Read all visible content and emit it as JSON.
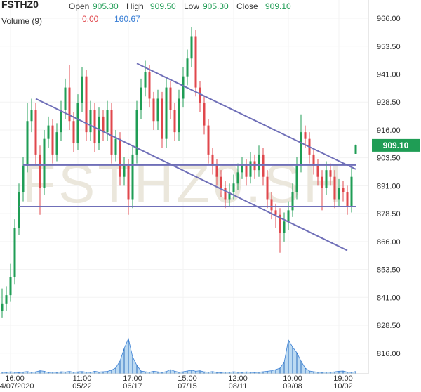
{
  "chart_data": {
    "type": "candlestick",
    "symbol": "FSTHZ0",
    "watermark": "FSTHZ0.SH",
    "header": [
      {
        "name": "Open",
        "label": "905.30"
      },
      {
        "name": "High",
        "label": "909.50"
      },
      {
        "name": "Low",
        "label": "905.30"
      },
      {
        "name": "Close",
        "label": "909.10"
      }
    ],
    "volume_header": {
      "name": "Volume (9)",
      "values": [
        "0.00",
        "160.67"
      ]
    },
    "last_price": {
      "value": 909.1,
      "label": "909.10"
    },
    "up_color": "#1f9d55",
    "down_color": "#e0474c",
    "line_color": "#6f6fb8",
    "volume_color": "#8fc1ea",
    "ylim": [
      806.8,
      974.2
    ],
    "yticks": [
      {
        "value": 966,
        "label": "966.00"
      },
      {
        "value": 953.5,
        "label": "953.50"
      },
      {
        "value": 941,
        "label": "941.00"
      },
      {
        "value": 928.5,
        "label": "928.50"
      },
      {
        "value": 916,
        "label": "916.00"
      },
      {
        "value": 903.5,
        "label": "903.50"
      },
      {
        "value": 891,
        "label": "891.00"
      },
      {
        "value": 878.5,
        "label": "878.50"
      },
      {
        "value": 866,
        "label": "866.00"
      },
      {
        "value": 853.5,
        "label": "853.50"
      },
      {
        "value": 841,
        "label": "841.00"
      },
      {
        "value": 828.5,
        "label": "828.50"
      },
      {
        "value": 816,
        "label": "816.00"
      }
    ],
    "volume_lim": [
      0,
      3000
    ],
    "categories": [
      null,
      null,
      "04/07/2020",
      null,
      null,
      null,
      null,
      null,
      null,
      null,
      null,
      null,
      null,
      null,
      null,
      null,
      null,
      null,
      "05/22",
      null,
      null,
      null,
      null,
      null,
      null,
      null,
      null,
      null,
      null,
      null,
      "06/17",
      null,
      null,
      null,
      null,
      null,
      null,
      null,
      null,
      null,
      null,
      null,
      null,
      "07/15",
      null,
      null,
      null,
      null,
      null,
      null,
      null,
      null,
      null,
      null,
      null,
      "08/11",
      null,
      null,
      null,
      null,
      null,
      null,
      null,
      null,
      null,
      null,
      null,
      null,
      "09/08",
      null,
      null,
      null,
      null,
      null,
      null,
      null,
      null,
      null,
      null,
      null,
      "10/02",
      null,
      null,
      null,
      null
    ],
    "category_times": [
      null,
      null,
      "16:00",
      null,
      null,
      null,
      null,
      null,
      null,
      null,
      null,
      null,
      null,
      null,
      null,
      null,
      null,
      null,
      "11:00",
      null,
      null,
      null,
      null,
      null,
      null,
      null,
      null,
      null,
      null,
      null,
      "17:00",
      null,
      null,
      null,
      null,
      null,
      null,
      null,
      null,
      null,
      null,
      null,
      null,
      "15:00",
      null,
      null,
      null,
      null,
      null,
      null,
      null,
      null,
      null,
      null,
      null,
      "12:00",
      null,
      null,
      null,
      null,
      null,
      null,
      null,
      null,
      null,
      null,
      null,
      null,
      "10:00",
      null,
      null,
      null,
      null,
      null,
      null,
      null,
      null,
      null,
      null,
      null,
      "19:00",
      null,
      null,
      null,
      null
    ],
    "open": [
      835,
      838,
      842,
      850,
      872,
      888,
      900,
      920,
      925,
      905,
      890,
      912,
      918,
      905,
      915,
      925,
      935,
      920,
      910,
      928,
      940,
      915,
      925,
      910,
      922,
      915,
      925,
      905,
      912,
      895,
      900,
      885,
      905,
      925,
      935,
      942,
      930,
      920,
      930,
      912,
      935,
      925,
      915,
      930,
      940,
      948,
      958,
      935,
      928,
      918,
      905,
      900,
      895,
      890,
      885,
      888,
      892,
      897,
      900,
      895,
      902,
      898,
      905,
      895,
      885,
      880,
      878,
      870,
      875,
      880,
      888,
      900,
      915,
      912,
      905,
      900,
      895,
      890,
      898,
      895,
      885,
      890,
      888,
      882,
      905.3
    ],
    "high": [
      845,
      846,
      856,
      876,
      892,
      904,
      928,
      930,
      928,
      909,
      916,
      922,
      921,
      919,
      929,
      939,
      945,
      924,
      932,
      944,
      943,
      929,
      928,
      926,
      925,
      929,
      928,
      916,
      915,
      904,
      903,
      909,
      929,
      939,
      947,
      945,
      933,
      934,
      933,
      939,
      938,
      928,
      934,
      944,
      952,
      962,
      961,
      938,
      931,
      921,
      908,
      903,
      898,
      893,
      892,
      896,
      901,
      904,
      903,
      906,
      905,
      909,
      908,
      898,
      888,
      883,
      881,
      879,
      884,
      892,
      904,
      923,
      918,
      915,
      908,
      903,
      898,
      902,
      901,
      898,
      894,
      893,
      891,
      899,
      909.5
    ],
    "low": [
      832,
      835,
      839,
      847,
      869,
      884,
      897,
      915,
      900,
      878,
      887,
      908,
      901,
      902,
      911,
      921,
      916,
      906,
      907,
      924,
      911,
      911,
      906,
      907,
      911,
      911,
      901,
      902,
      891,
      891,
      878,
      881,
      901,
      921,
      931,
      926,
      916,
      916,
      908,
      908,
      921,
      911,
      911,
      926,
      936,
      944,
      931,
      924,
      914,
      901,
      896,
      891,
      886,
      881,
      882,
      885,
      889,
      894,
      891,
      892,
      894,
      895,
      891,
      881,
      876,
      872,
      861,
      866,
      871,
      877,
      885,
      897,
      908,
      901,
      896,
      891,
      880,
      887,
      891,
      881,
      882,
      884,
      878,
      879,
      905.3
    ],
    "close": [
      838,
      842,
      850,
      872,
      888,
      900,
      920,
      925,
      905,
      890,
      912,
      918,
      905,
      915,
      925,
      935,
      920,
      910,
      928,
      940,
      915,
      925,
      910,
      922,
      915,
      925,
      905,
      912,
      895,
      900,
      885,
      905,
      925,
      935,
      942,
      930,
      920,
      930,
      912,
      935,
      925,
      915,
      930,
      940,
      948,
      958,
      935,
      928,
      918,
      905,
      900,
      895,
      890,
      885,
      888,
      892,
      897,
      900,
      895,
      902,
      898,
      905,
      895,
      885,
      880,
      878,
      870,
      875,
      880,
      888,
      900,
      915,
      912,
      905,
      900,
      895,
      890,
      898,
      895,
      885,
      890,
      888,
      882,
      895,
      909.1
    ],
    "volume": [
      120,
      90,
      150,
      110,
      80,
      130,
      160,
      100,
      140,
      220,
      180,
      90,
      120,
      100,
      150,
      130,
      170,
      110,
      140,
      160,
      120,
      100,
      180,
      130,
      150,
      170,
      260,
      420,
      900,
      1800,
      2500,
      1200,
      600,
      200,
      150,
      120,
      180,
      140,
      100,
      160,
      300,
      180,
      120,
      150,
      200,
      260,
      180,
      220,
      140,
      120,
      160,
      100,
      90,
      130,
      110,
      150,
      120,
      100,
      140,
      110,
      90,
      120,
      150,
      180,
      220,
      300,
      400,
      800,
      2400,
      1900,
      1500,
      900,
      400,
      200,
      150,
      120,
      100,
      130,
      110,
      140,
      180,
      200,
      120,
      100,
      160.67
    ],
    "trend_lines": [
      {
        "x": [
          8,
          82
        ],
        "y": [
          930,
          862
        ]
      },
      {
        "x": [
          32,
          84
        ],
        "y": [
          945.8,
          898.4
        ]
      },
      {
        "x": [
          5,
          84
        ],
        "y": [
          900.3,
          900.3
        ]
      },
      {
        "x": [
          4,
          84
        ],
        "y": [
          881.7,
          881.7
        ]
      }
    ]
  }
}
